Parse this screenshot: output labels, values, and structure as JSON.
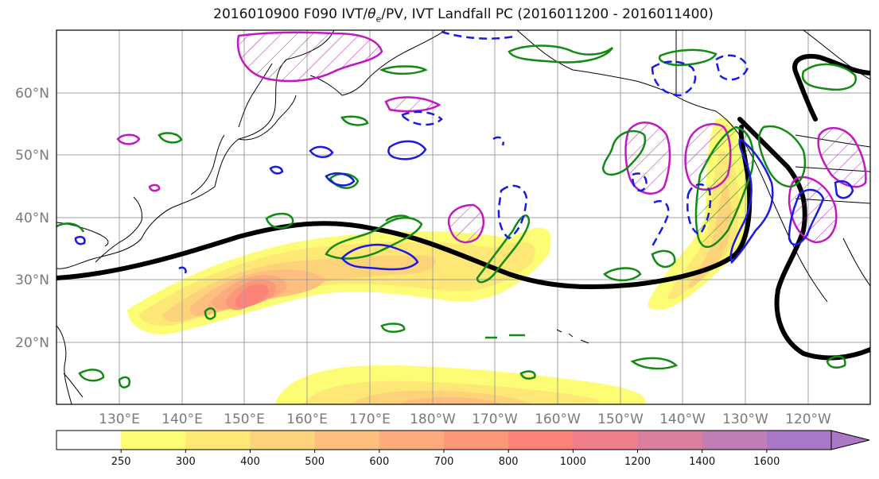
{
  "title": {
    "prefix": "2016010900 F090 IVT/",
    "theta": "θ",
    "theta_sub": "e",
    "suffix": "/PV, IVT Landfall PC (2016011200 - 2016011400)"
  },
  "map": {
    "projection": "PlateCarree",
    "extent": {
      "lon": [
        120,
        250
      ],
      "lat": [
        10,
        70
      ]
    },
    "lat_labels": [
      "20°N",
      "30°N",
      "40°N",
      "50°N",
      "60°N"
    ],
    "lon_labels": [
      "130°E",
      "140°E",
      "150°E",
      "160°E",
      "170°E",
      "180°W",
      "170°W",
      "160°W",
      "150°W",
      "140°W",
      "130°W",
      "120°W"
    ],
    "gridline_color": "#a0a0a0",
    "label_color": "#7a7a7a",
    "layers": {
      "ivt_fill": "filled contours of IVT",
      "theta_e_contour": "black",
      "pv_positive": "magenta hatched",
      "pv_contour": "green",
      "ivt_pc_positive": "blue solid",
      "ivt_pc_negative": "blue dashed"
    },
    "contour_colors": {
      "black_line": "#000000",
      "magenta": "#c218c2",
      "green": "#138a13",
      "blue": "#1a1ae6"
    }
  },
  "colorbar": {
    "levels": [
      "250",
      "300",
      "400",
      "500",
      "600",
      "700",
      "800",
      "1000",
      "1200",
      "1400",
      "1600"
    ],
    "colors": [
      "#ffffff",
      "#fdfc75",
      "#fde875",
      "#fdd37a",
      "#fdbe7e",
      "#fdab7c",
      "#fd977a",
      "#fd8278",
      "#ef7d8a",
      "#d87f9e",
      "#c07fb4",
      "#a978c6"
    ],
    "extend": "max"
  }
}
